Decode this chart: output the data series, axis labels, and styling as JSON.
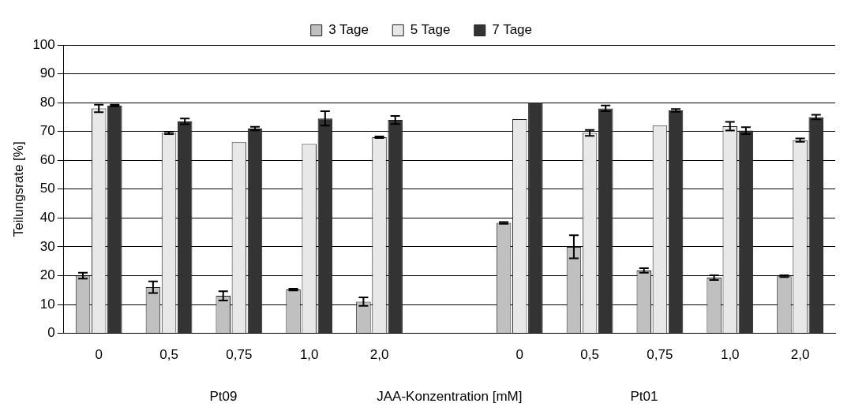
{
  "chart_data": {
    "type": "bar",
    "categories": [
      "0",
      "0,5",
      "0,75",
      "1,0",
      "2,0",
      null,
      "0",
      "0,5",
      "0,75",
      "1,0",
      "2,0"
    ],
    "series": [
      {
        "name": "3 Tage",
        "color": "#c0c0c0",
        "values": [
          20,
          16,
          13,
          15.2,
          11,
          null,
          38.3,
          30,
          21.8,
          19.3,
          19.8
        ],
        "errors": [
          1,
          2,
          1.6,
          0.3,
          1.5,
          null,
          0.3,
          4,
          0.8,
          0.8,
          0.3
        ]
      },
      {
        "name": "5 Tage",
        "color": "#e8e8e8",
        "values": [
          78,
          69.5,
          66.3,
          65.7,
          68,
          null,
          74.3,
          69.5,
          72,
          71.8,
          67
        ],
        "errors": [
          1.3,
          0.4,
          null,
          null,
          0.3,
          null,
          null,
          1,
          null,
          1.5,
          0.6
        ]
      },
      {
        "name": "7 Tage",
        "color": "#333333",
        "values": [
          79,
          73.5,
          71,
          74.5,
          74,
          null,
          80,
          78,
          77.3,
          70.3,
          75
        ],
        "errors": [
          0.3,
          1,
          0.6,
          2.5,
          1.4,
          null,
          null,
          1,
          0.5,
          1.2,
          0.8
        ]
      }
    ],
    "ylabel": "Teilungsrate [%]",
    "xlabel": "JAA-Konzentration [mM]",
    "annotations": [
      "Pt09",
      "Pt01"
    ],
    "ylim": [
      0,
      100
    ],
    "yticks": [
      0,
      10,
      20,
      30,
      40,
      50,
      60,
      70,
      80,
      90,
      100
    ],
    "grid": "y",
    "legend": "top"
  }
}
